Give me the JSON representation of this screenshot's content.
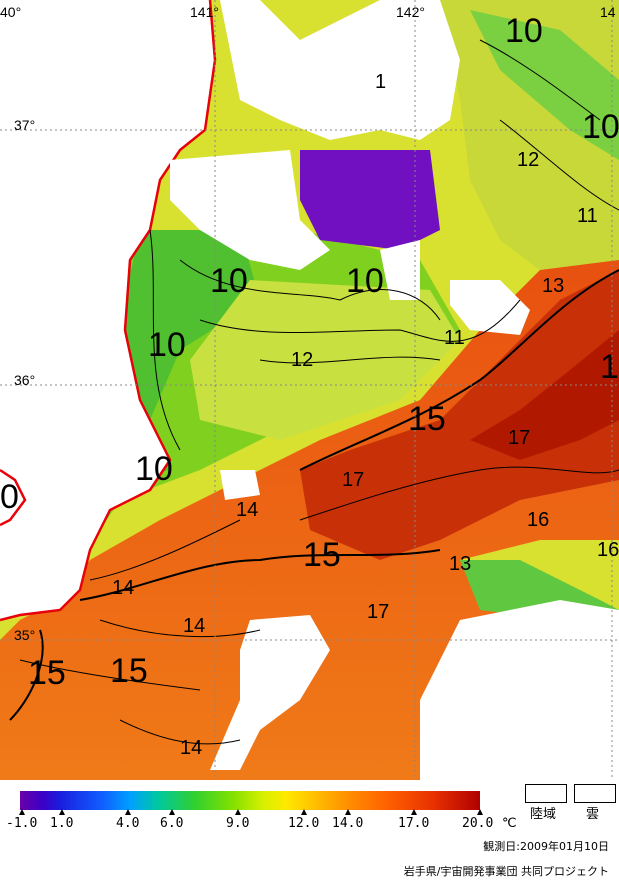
{
  "grid": {
    "lon_labels": [
      "40°",
      "141°",
      "142°",
      "14"
    ],
    "lat_labels": [
      "37°",
      "36°",
      "35°"
    ]
  },
  "contours": {
    "labels": [
      "10",
      "10",
      "12",
      "11",
      "1",
      "10",
      "10",
      "10",
      "13",
      "11",
      "12",
      "1",
      "15",
      "17",
      "10",
      "17",
      "14",
      "16",
      "16",
      "15",
      "13",
      "17",
      "14",
      "14",
      "15",
      "15",
      "14",
      "0"
    ]
  },
  "colorbar": {
    "ticks": [
      "-1.0",
      "1.0",
      "4.0",
      "6.0",
      "9.0",
      "12.0",
      "14.0",
      "17.0",
      "20.0"
    ],
    "unit": "℃"
  },
  "legend": {
    "land": "陸域",
    "cloud": "雲"
  },
  "observation_date": "観測日:2009年01月10日",
  "credit": "岩手県/宇宙開発事業団  共同プロジェクト",
  "colors": {
    "coast": "#e8000a",
    "cloud": "#ffffff",
    "purple": "#7a10c8",
    "green": "#7ad020",
    "yellow": "#e8e030",
    "orange": "#f07010",
    "red": "#d84000"
  }
}
